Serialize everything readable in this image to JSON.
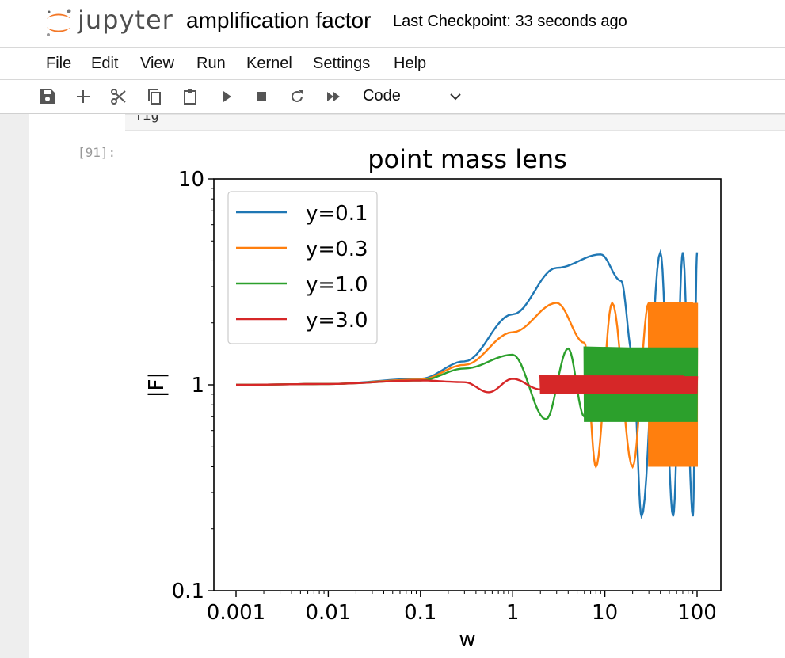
{
  "app": {
    "logo_text": "jupyter",
    "notebook_title": "amplification factor",
    "checkpoint": "Last Checkpoint: 33 seconds ago"
  },
  "menu": {
    "items": [
      "File",
      "Edit",
      "View",
      "Run",
      "Kernel",
      "Settings",
      "Help"
    ]
  },
  "toolbar": {
    "icons": [
      "save-icon",
      "add-cell-icon",
      "cut-icon",
      "copy-icon",
      "paste-icon",
      "run-icon",
      "stop-icon",
      "restart-icon",
      "run-all-icon"
    ],
    "cell_type": "Code"
  },
  "cells": {
    "prev_cell_text": "fig",
    "prompt": "[91]:"
  },
  "chart_data": {
    "type": "line",
    "title": "point mass lens",
    "xlabel": "w",
    "ylabel": "|F|",
    "xscale": "log",
    "yscale": "log",
    "xlim": [
      0.001,
      100
    ],
    "ylim": [
      0.1,
      10
    ],
    "xticks": [
      "0.001",
      "0.01",
      "0.1",
      "1",
      "10",
      "100"
    ],
    "yticks": [
      "0.1",
      "1",
      "10"
    ],
    "legend_position": "upper-left",
    "grid": false,
    "series": [
      {
        "name": "y=0.1",
        "color": "#1f77b4",
        "points": [
          [
            0.001,
            1.0
          ],
          [
            0.01,
            1.01
          ],
          [
            0.1,
            1.07
          ],
          [
            0.3,
            1.3
          ],
          [
            1,
            2.2
          ],
          [
            3,
            3.7
          ],
          [
            9,
            4.3
          ],
          [
            15,
            3.2
          ],
          [
            20,
            1.4
          ],
          [
            25,
            0.23
          ],
          [
            40,
            4.4
          ],
          [
            55,
            0.23
          ],
          [
            70,
            4.4
          ],
          [
            90,
            0.23
          ],
          [
            100,
            4.4
          ]
        ]
      },
      {
        "name": "y=0.3",
        "color": "#ff7f0e",
        "points": [
          [
            0.001,
            1.0
          ],
          [
            0.01,
            1.01
          ],
          [
            0.1,
            1.06
          ],
          [
            0.3,
            1.25
          ],
          [
            1,
            1.8
          ],
          [
            3,
            2.5
          ],
          [
            6,
            1.6
          ],
          [
            8,
            0.4
          ],
          [
            12,
            2.5
          ],
          [
            20,
            0.4
          ],
          [
            30,
            2.5
          ],
          [
            100,
            2.5
          ]
        ],
        "oscillation_range": [
          0.4,
          2.5
        ]
      },
      {
        "name": "y=1.0",
        "color": "#2ca02c",
        "points": [
          [
            0.001,
            1.0
          ],
          [
            0.01,
            1.01
          ],
          [
            0.1,
            1.05
          ],
          [
            0.3,
            1.2
          ],
          [
            1,
            1.4
          ],
          [
            2.3,
            0.68
          ],
          [
            4,
            1.5
          ],
          [
            6,
            0.7
          ],
          [
            100,
            1.5
          ]
        ],
        "oscillation_range": [
          0.66,
          1.52
        ]
      },
      {
        "name": "y=3.0",
        "color": "#d62728",
        "points": [
          [
            0.001,
            1.0
          ],
          [
            0.01,
            1.01
          ],
          [
            0.1,
            1.05
          ],
          [
            0.3,
            1.03
          ],
          [
            0.55,
            0.92
          ],
          [
            1,
            1.07
          ],
          [
            2,
            0.95
          ],
          [
            100,
            1.1
          ]
        ],
        "oscillation_range": [
          0.9,
          1.1
        ]
      }
    ]
  }
}
